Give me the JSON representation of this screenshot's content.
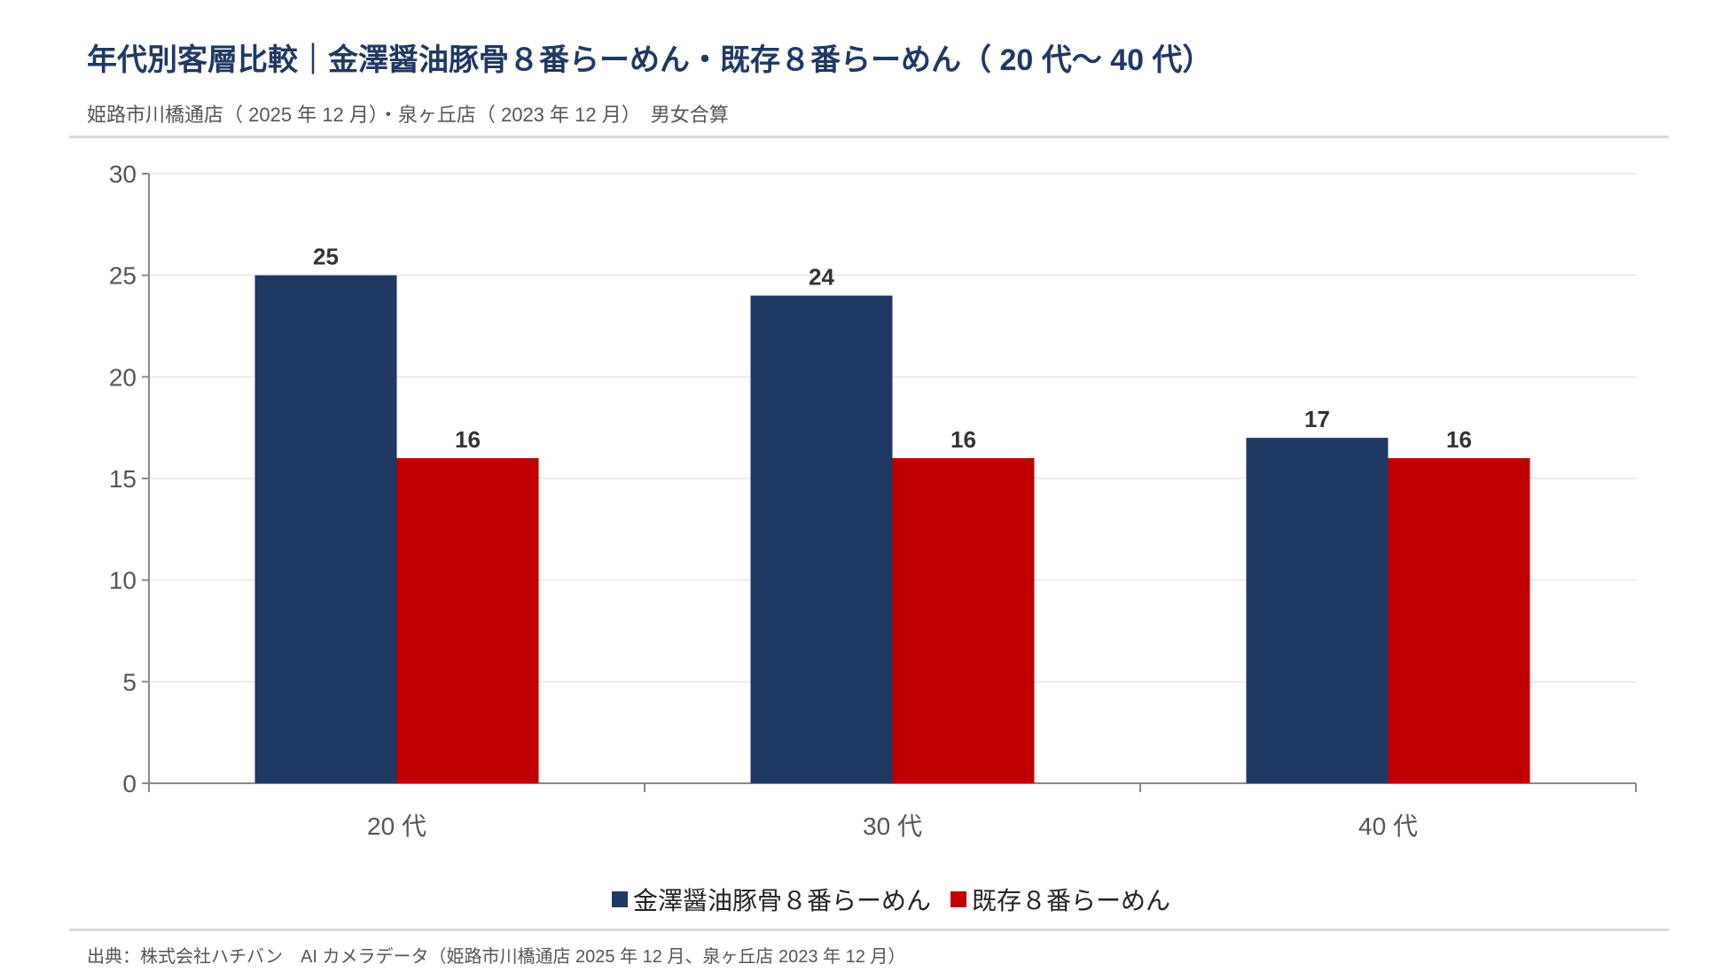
{
  "header": {
    "title": "年代別客層比較｜金澤醤油豚骨８番らーめん・既存８番らーめん（ 20 代〜 40 代）",
    "subtitle": "姫路市川橋通店（ 2025 年 12 月）・泉ヶ丘店（ 2023 年 12 月）　男女合算"
  },
  "footer": {
    "source": "出典：株式会社ハチバン　AI カメラデータ（姫路市川橋通店 2025 年 12 月、泉ヶ丘店 2023 年 12 月）"
  },
  "chart_data": {
    "type": "bar",
    "categories": [
      "20 代",
      "30 代",
      "40 代"
    ],
    "series": [
      {
        "name": "金澤醤油豚骨８番らーめん",
        "values": [
          25,
          24,
          17
        ],
        "color": "#203864"
      },
      {
        "name": "既存８番らーめん",
        "values": [
          16,
          16,
          16
        ],
        "color": "#c00000"
      }
    ],
    "ylim": [
      0,
      30
    ],
    "yticks": [
      "0",
      "5",
      "10",
      "15",
      "20",
      "25",
      "30"
    ],
    "grid": true,
    "legend": "bottom",
    "data_labels": true
  }
}
